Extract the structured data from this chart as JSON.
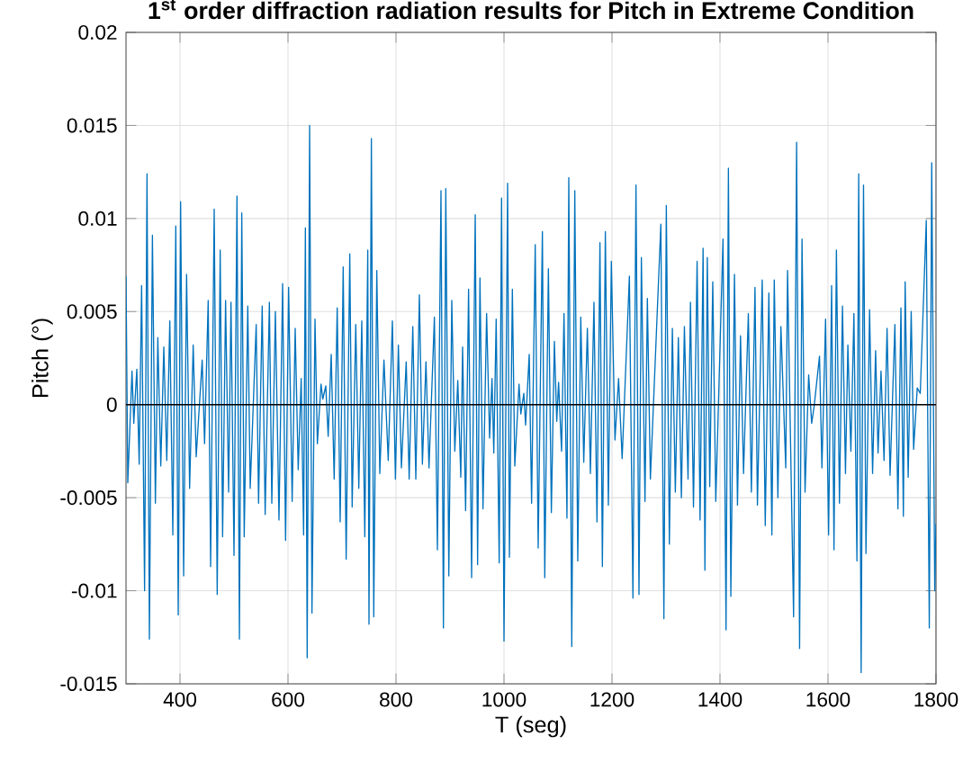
{
  "chart_data": {
    "type": "line",
    "title": "1$^{st}$ order diffraction radiation results for Pitch in Extreme Condition",
    "xlabel": "T (seg)",
    "ylabel": "Pitch (°)",
    "color": "#0072bd",
    "x": [
      300,
      303.3,
      311.1,
      314.4,
      320,
      324.4,
      328.9,
      334.4,
      338.9,
      343.3,
      348.9,
      354.4,
      358.9,
      364.4,
      370,
      375.5,
      381.1,
      386.7,
      392.2,
      396.7,
      401.1,
      406.7,
      412.2,
      417.8,
      424.4,
      430,
      441.1,
      445.5,
      452.2,
      456.7,
      463.3,
      468.9,
      474.4,
      478.9,
      484.4,
      490,
      494.4,
      500,
      505.5,
      510,
      514.4,
      518.9,
      525.5,
      530,
      541.1,
      545.5,
      552.2,
      557.7,
      565.5,
      570,
      576.6,
      583.3,
      590,
      595.5,
      601.1,
      607.7,
      613.3,
      618.9,
      624.4,
      628.9,
      632.2,
      635.5,
      640,
      644.4,
      650,
      654.4,
      661.1,
      664.4,
      670,
      674.4,
      680,
      685.5,
      691.1,
      696.6,
      702.2,
      707.7,
      714.4,
      718.8,
      725.5,
      731.1,
      736.6,
      742.2,
      747.7,
      750,
      754.4,
      758.8,
      764.4,
      770,
      777.7,
      785.6,
      793.3,
      798.9,
      804.4,
      810,
      818.9,
      824.4,
      831.1,
      836.7,
      843.3,
      848.9,
      855.5,
      861.1,
      871.1,
      876.7,
      883.3,
      887.8,
      892.2,
      897.8,
      903.3,
      908.9,
      914.4,
      920,
      923.3,
      928.9,
      934.4,
      940,
      946.7,
      951.1,
      955.5,
      961.1,
      967.8,
      973.3,
      977.8,
      981.1,
      985.5,
      991.1,
      995.5,
      1000,
      1006.7,
      1010,
      1015.5,
      1020,
      1027.8,
      1031.1,
      1036.7,
      1040,
      1046.7,
      1051.1,
      1057.8,
      1063.3,
      1071.1,
      1075.5,
      1082.2,
      1087.7,
      1093.3,
      1097.7,
      1101.1,
      1106.6,
      1111.1,
      1116.6,
      1120,
      1125.5,
      1131.1,
      1136.6,
      1142.2,
      1147.7,
      1154.4,
      1160,
      1166.6,
      1172.2,
      1177.7,
      1182.2,
      1187.7,
      1193.3,
      1198.8,
      1205.5,
      1212.2,
      1218.8,
      1232.2,
      1238.8,
      1244.4,
      1250,
      1254.4,
      1261.1,
      1265.5,
      1271.1,
      1290.5,
      1296.1,
      1300.6,
      1306.2,
      1311.8,
      1317.3,
      1322.9,
      1328.5,
      1334.1,
      1340.8,
      1345.3,
      1350.9,
      1357.6,
      1363.1,
      1368.7,
      1372.1,
      1376.5,
      1381,
      1386.6,
      1392.2,
      1405.6,
      1411.2,
      1415.6,
      1420.1,
      1426.8,
      1432.4,
      1438,
      1443.6,
      1452.5,
      1458.1,
      1464.8,
      1469.3,
      1478.2,
      1483.8,
      1490.5,
      1496.1,
      1500.5,
      1507.2,
      1512.8,
      1521.8,
      1525.1,
      1536.3,
      1541.9,
      1547.4,
      1551.9,
      1557.5,
      1564.2,
      1569.8,
      1574.3,
      1584.3,
      1588.8,
      1595.5,
      1601.1,
      1606.7,
      1611.1,
      1615.6,
      1621.2,
      1626.8,
      1632.4,
      1636.8,
      1642.4,
      1648,
      1653.6,
      1656.9,
      1661.4,
      1665.8,
      1670.3,
      1677,
      1682.6,
      1688.2,
      1692.7,
      1698.2,
      1703.8,
      1709.4,
      1715,
      1723.9,
      1729.5,
      1735.1,
      1739.6,
      1742.9,
      1748.5,
      1754.1,
      1758.6,
      1765.3,
      1770.9,
      1782,
      1787.6,
      1792.1,
      1797.7,
      1800
    ],
    "values": [
      0.0069,
      -0.0042,
      0.0018,
      -0.001,
      0.0019,
      -0.0032,
      0.0064,
      -0.01,
      0.0124,
      -0.0126,
      0.0091,
      -0.0053,
      0.0036,
      -0.0033,
      0.0031,
      -0.003,
      0.0045,
      -0.007,
      0.0096,
      -0.0113,
      0.0109,
      -0.0092,
      0.007,
      -0.0045,
      0.0032,
      -0.0028,
      0.0024,
      -0.0021,
      0.0056,
      -0.0087,
      0.0105,
      -0.0102,
      0.0083,
      -0.0071,
      0.0056,
      -0.0047,
      0.0055,
      -0.0081,
      0.0112,
      -0.0126,
      0.0103,
      -0.0071,
      0.0053,
      -0.0045,
      0.0043,
      -0.0053,
      0.0053,
      -0.0059,
      0.0055,
      -0.0053,
      0.005,
      -0.0062,
      0.0065,
      -0.0073,
      0.0063,
      -0.0052,
      0.0041,
      -0.0035,
      0.0014,
      -0.007,
      0.0095,
      -0.0136,
      0.015,
      -0.0112,
      0.0046,
      -0.0021,
      0.0011,
      0.0003,
      0.001,
      -0.0017,
      0.0027,
      -0.004,
      0.0052,
      -0.0063,
      0.0074,
      -0.0083,
      0.0081,
      -0.0055,
      0.0043,
      -0.0045,
      0.0045,
      -0.0071,
      0.0083,
      -0.0118,
      0.0143,
      -0.0114,
      0.0072,
      -0.0037,
      0.0024,
      -0.003,
      0.0045,
      -0.004,
      0.0032,
      -0.0034,
      0.0023,
      -0.004,
      0.0042,
      -0.004,
      0.0059,
      -0.0032,
      0.0023,
      -0.0034,
      0.0047,
      -0.0078,
      0.0115,
      -0.012,
      0.0116,
      -0.0092,
      0.0056,
      -0.0025,
      0.0013,
      -0.0039,
      0.0031,
      -0.0057,
      0.0062,
      -0.0093,
      0.0102,
      -0.0086,
      0.0068,
      -0.0056,
      0.0049,
      -0.0018,
      0.0014,
      -0.0026,
      0.0046,
      -0.0085,
      0.0111,
      -0.0127,
      0.0119,
      -0.0082,
      0.0062,
      -0.0033,
      0.0011,
      -0.0005,
      0.0006,
      -0.0011,
      0.0027,
      -0.0053,
      0.0086,
      -0.0077,
      0.0093,
      -0.0093,
      0.0073,
      -0.0058,
      0.0034,
      -0.0009,
      0.0012,
      -0.0025,
      0.0049,
      -0.0061,
      0.0122,
      -0.013,
      0.0115,
      -0.0084,
      0.0047,
      -0.0031,
      0.0041,
      -0.0037,
      0.0055,
      -0.0063,
      0.0087,
      -0.0087,
      0.0093,
      -0.0054,
      0.0077,
      -0.0019,
      0.0014,
      -0.0029,
      0.0069,
      -0.0104,
      0.0118,
      -0.0102,
      0.0079,
      -0.0052,
      0.0057,
      -0.004,
      0.0097,
      -0.0115,
      0.0107,
      -0.0075,
      0.0041,
      -0.0047,
      0.0036,
      -0.005,
      0.0042,
      -0.004,
      0.0055,
      -0.0055,
      0.0077,
      -0.0062,
      0.0084,
      -0.0089,
      0.0079,
      -0.0044,
      0.0066,
      -0.0052,
      0.0089,
      -0.0121,
      0.0127,
      -0.0103,
      0.007,
      -0.0054,
      0.0037,
      -0.0037,
      0.0049,
      -0.0047,
      0.0063,
      -0.0054,
      0.0067,
      -0.0065,
      0.006,
      -0.007,
      0.0067,
      -0.005,
      0.0042,
      -0.0034,
      0.0072,
      -0.0114,
      0.0141,
      -0.0131,
      0.0089,
      -0.0047,
      0.0016,
      -0.001,
      -0.0001,
      0.0026,
      -0.0034,
      0.0046,
      -0.007,
      0.0064,
      -0.0078,
      0.0083,
      -0.0053,
      0.0053,
      -0.0037,
      0.0032,
      -0.0025,
      0.0049,
      -0.0084,
      0.0124,
      -0.0144,
      0.0118,
      -0.008,
      0.0051,
      -0.0037,
      0.0029,
      -0.0026,
      0.0018,
      -0.003,
      0.0041,
      -0.0038,
      0.0043,
      -0.0056,
      0.0052,
      -0.006,
      0.0066,
      -0.0039,
      0.005,
      -0.0024,
      0.0009,
      0.0006,
      0.0099,
      -0.012,
      0.013,
      -0.01,
      -0.0064
    ],
    "xlim": [
      300,
      1800
    ],
    "xticks": [
      400,
      600,
      800,
      1000,
      1200,
      1400,
      1600,
      1800
    ],
    "ylim": [
      -0.015,
      0.02
    ],
    "yticks": [
      -0.015,
      -0.01,
      -0.005,
      0,
      0.005,
      0.01,
      0.015,
      0.02
    ],
    "grid": true,
    "ref_lines": [
      {
        "axis": "y",
        "value": 0,
        "color": "#000000"
      }
    ]
  }
}
